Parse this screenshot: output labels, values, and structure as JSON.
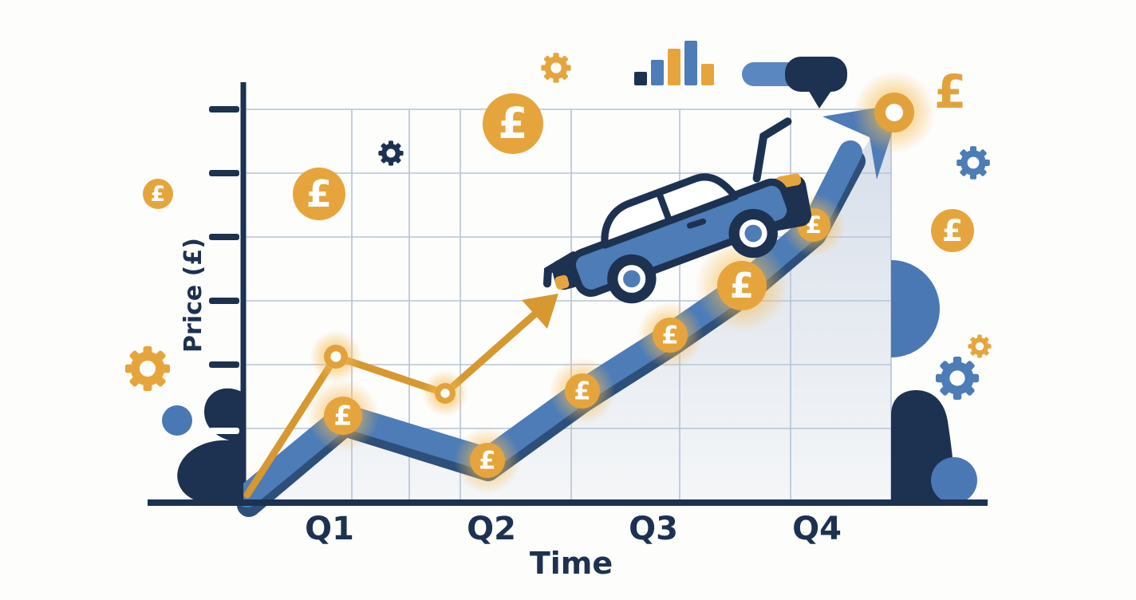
{
  "chart_data": {
    "type": "line",
    "title": "",
    "xlabel": "Time",
    "ylabel": "Price (£)",
    "categories": [
      "Q1",
      "Q2",
      "Q3",
      "Q4"
    ],
    "y_axis": {
      "tick_count": 6,
      "tick_labels": [],
      "range_note": "unlabeled qualitative price axis"
    },
    "grid": true,
    "legend": null,
    "series": [
      {
        "name": "car-price-trend-band",
        "style": "thick-arrow-band",
        "color": "#4d7cb7",
        "x": [
          "start",
          "Q1",
          "Q2",
          "Q2.6",
          "Q3.1",
          "Q3.6",
          "Q4",
          "end-arrow-tip"
        ],
        "values": [
          2,
          22,
          11,
          28,
          42,
          55,
          70,
          99
        ],
        "markers": "pound-coins"
      },
      {
        "name": "secondary-trend-line",
        "style": "thin-arrow-line",
        "color": "#d6982f",
        "x": [
          "start",
          "Q1",
          "Q1.7",
          "Q2.5-arrow-end"
        ],
        "values": [
          2,
          37,
          28,
          52
        ],
        "markers": "ring-dots",
        "note": "small gold arrow pointing at the car"
      }
    ]
  },
  "symbols": {
    "pound": "£"
  },
  "decor": {
    "coin_symbol": "£",
    "bar_icon": {
      "heights": [
        17,
        32,
        46,
        56,
        27
      ],
      "palette": [
        "navy",
        "blue",
        "gold",
        "blue",
        "gold"
      ]
    },
    "icons": [
      "gear-icon",
      "pound-coin-icon",
      "bar-chart-icon",
      "speech-toggle-icon",
      "car-icon",
      "trend-arrow-icon",
      "ring-marker-icon",
      "blob-shape",
      "circle-shape"
    ]
  },
  "colors": {
    "navy": "#1d3150",
    "blue": "#4d7cb7",
    "blue_dark": "#2d4f79",
    "gold": "#e6a53c",
    "gold_deep": "#d6982f",
    "grid": "#b6c3d7",
    "white": "#ffffff",
    "bg": "#fdfdfc"
  }
}
